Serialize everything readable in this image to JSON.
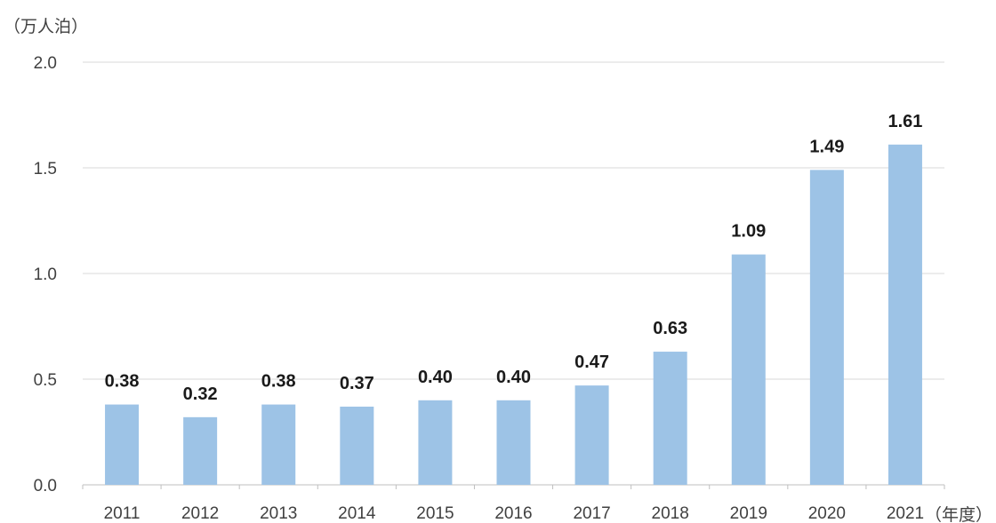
{
  "chart_data": {
    "type": "bar",
    "title": "",
    "ylabel": "（万人泊）",
    "xlabel": "（年度）",
    "categories": [
      "2011",
      "2012",
      "2013",
      "2014",
      "2015",
      "2016",
      "2017",
      "2018",
      "2019",
      "2020",
      "2021"
    ],
    "values": [
      0.38,
      0.32,
      0.38,
      0.37,
      0.4,
      0.4,
      0.47,
      0.63,
      1.09,
      1.49,
      1.61
    ],
    "data_labels": [
      "0.38",
      "0.32",
      "0.38",
      "0.37",
      "0.40",
      "0.40",
      "0.47",
      "0.63",
      "1.09",
      "1.49",
      "1.61"
    ],
    "ylim": [
      0,
      2.0
    ],
    "yticks": [
      "0.0",
      "0.5",
      "1.0",
      "1.5",
      "2.0"
    ],
    "grid": true,
    "legend": "none",
    "bar_color": "#9dc3e6",
    "grid_color": "#d9d9d9"
  }
}
